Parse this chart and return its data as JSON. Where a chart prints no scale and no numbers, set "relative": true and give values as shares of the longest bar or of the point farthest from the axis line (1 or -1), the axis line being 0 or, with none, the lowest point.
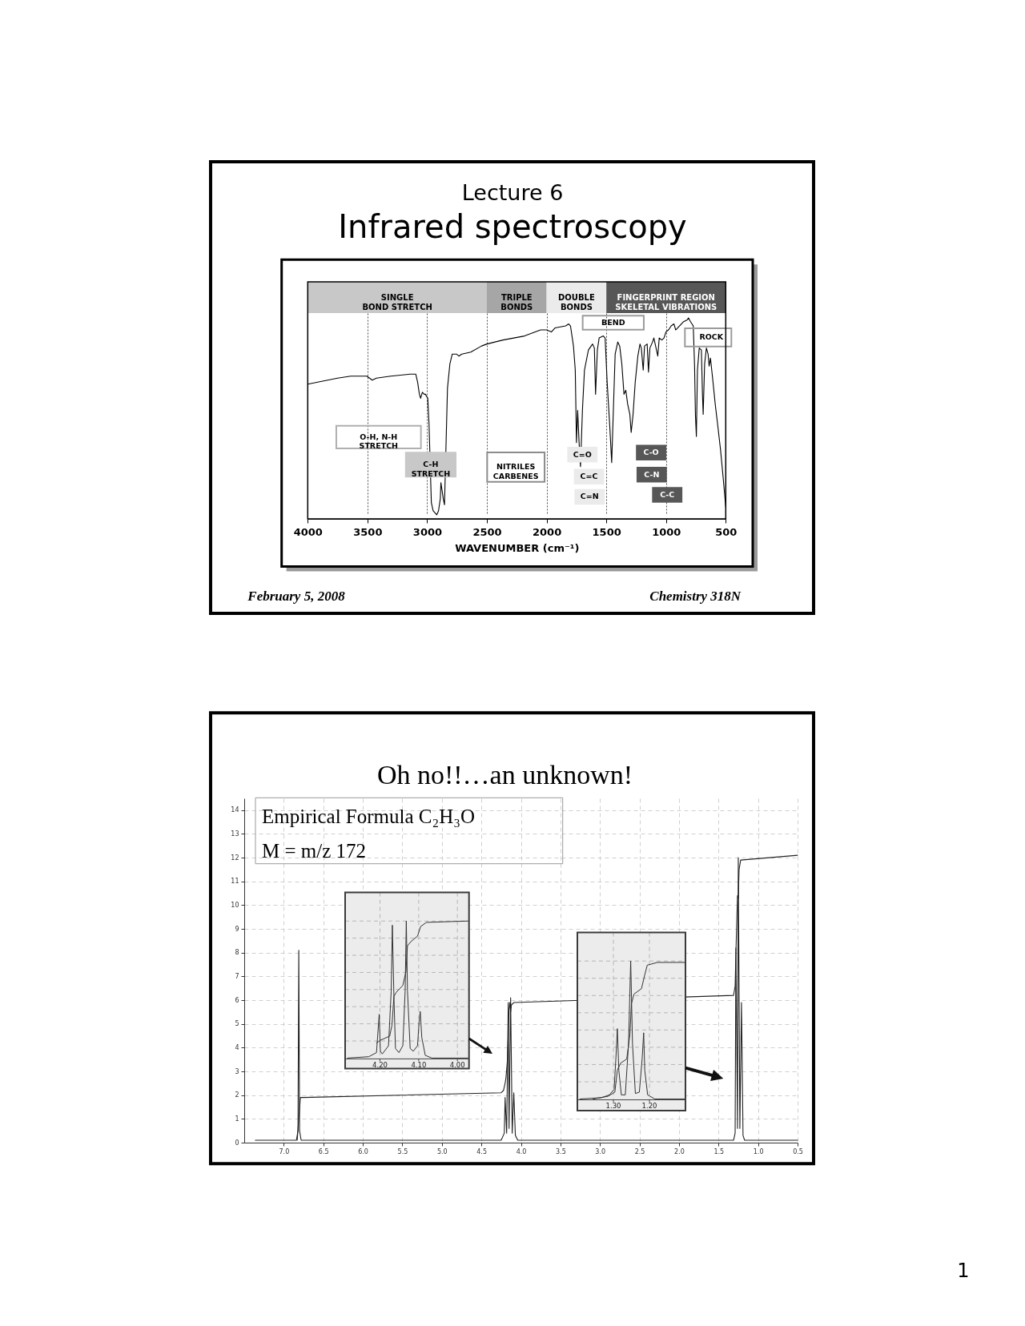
{
  "chart_data": [
    {
      "type": "line",
      "title": "Lecture 6",
      "subtitle": "Infrared spectroscopy",
      "xlabel": "WAVENUMBER (cm⁻¹)",
      "relative": true,
      "color": "#000000",
      "x": [
        4000,
        3750,
        3640,
        3505,
        3460,
        3425,
        3305,
        3145,
        3095,
        3080,
        3065,
        3055,
        3040,
        3025,
        3015,
        2995,
        2985,
        2965,
        2950,
        2935,
        2920,
        2905,
        2890,
        2885,
        2875,
        2865,
        2855,
        2830,
        2810,
        2790,
        2755,
        2735,
        2710,
        2635,
        2545,
        2500,
        2365,
        2185,
        2050,
        2000,
        1960,
        1930,
        1840,
        1815,
        1800,
        1775,
        1760,
        1750,
        1740,
        1728,
        1716,
        1700,
        1683,
        1650,
        1615,
        1600,
        1590,
        1575,
        1560,
        1525,
        1510,
        1493,
        1471,
        1455,
        1441,
        1426,
        1404,
        1388,
        1370,
        1352,
        1337,
        1321,
        1303,
        1292,
        1276,
        1258,
        1236,
        1218,
        1207,
        1191,
        1180,
        1158,
        1147,
        1135,
        1113,
        1102,
        1069,
        1057,
        1035,
        1017,
        1001,
        979,
        957,
        934,
        919,
        856,
        823,
        812,
        794,
        772,
        761,
        754,
        746,
        737,
        722,
        704,
        695,
        689,
        677,
        662,
        648,
        639,
        628,
        610,
        588,
        566,
        543,
        521,
        500
      ],
      "values": [
        0.67,
        0.7,
        0.71,
        0.71,
        0.69,
        0.7,
        0.71,
        0.72,
        0.72,
        0.68,
        0.62,
        0.6,
        0.63,
        0.62,
        0.62,
        0.6,
        0.48,
        0.08,
        0.04,
        0.03,
        0.02,
        0.04,
        0.1,
        0.18,
        0.14,
        0.1,
        0.07,
        0.65,
        0.77,
        0.82,
        0.82,
        0.81,
        0.82,
        0.83,
        0.86,
        0.87,
        0.89,
        0.91,
        0.94,
        0.94,
        0.93,
        0.95,
        0.96,
        0.97,
        0.96,
        0.86,
        0.74,
        0.38,
        0.54,
        0.38,
        0.26,
        0.54,
        0.74,
        0.84,
        0.87,
        0.85,
        0.62,
        0.84,
        0.9,
        0.91,
        0.9,
        0.68,
        0.46,
        0.28,
        0.54,
        0.82,
        0.88,
        0.86,
        0.77,
        0.62,
        0.64,
        0.57,
        0.52,
        0.43,
        0.52,
        0.68,
        0.81,
        0.87,
        0.85,
        0.74,
        0.86,
        0.87,
        0.73,
        0.85,
        0.88,
        0.9,
        0.81,
        0.9,
        0.89,
        0.9,
        0.93,
        0.94,
        0.96,
        0.97,
        0.94,
        0.98,
        0.99,
        1.0,
        0.98,
        0.96,
        0.76,
        0.52,
        0.41,
        0.74,
        0.85,
        0.84,
        0.62,
        0.52,
        0.77,
        0.85,
        0.82,
        0.76,
        0.8,
        0.7,
        0.57,
        0.46,
        0.34,
        0.2,
        0.06
      ],
      "xlim": [
        4000,
        500
      ],
      "xticks": [
        4000,
        3500,
        3000,
        2500,
        2000,
        1500,
        1000,
        500
      ],
      "grid": "x",
      "annotations": [
        {
          "text": "C-H\nSTRETCH",
          "x": 2970,
          "y": 0.27
        },
        {
          "text": "C=O",
          "x": 1700,
          "y": 0.32
        },
        {
          "text": "C=C",
          "x": 1645,
          "y": 0.21
        },
        {
          "text": "C=N",
          "x": 1640,
          "y": 0.11
        },
        {
          "text": "C-O",
          "x": 1125,
          "y": 0.33
        },
        {
          "text": "C-N",
          "x": 1120,
          "y": 0.22
        },
        {
          "text": "C-C",
          "x": 990,
          "y": 0.12
        },
        "SINGLE\nBOND STRETCH",
        "TRIPLE\nBONDS",
        "DOUBLE\nBONDS",
        "FINGERPRINT REGION\nSKELETAL VIBRATIONS",
        "O-H, N-H\nSTRETCH",
        "NITRILES\nCARBENES",
        "BEND",
        "ROCK",
        "February 5, 2008",
        "Chemistry 318N"
      ]
    },
    {
      "type": "line",
      "title": "Oh no!!…an unknown!",
      "xlim": [
        7.5,
        0.5
      ],
      "xticks": [
        {
          "value": 7,
          "label": "7.0"
        },
        6.5,
        {
          "value": 6,
          "label": "6.0"
        },
        5.5,
        {
          "value": 5,
          "label": "5.0"
        },
        4.5,
        {
          "value": 4,
          "label": "4.0"
        },
        3.5,
        {
          "value": 3,
          "label": "3.0"
        },
        2.5,
        {
          "value": 2,
          "label": "2.0"
        },
        1.5,
        {
          "value": 1,
          "label": "1.0"
        },
        0.5
      ],
      "ylim": [
        0,
        14.5
      ],
      "yticks": [
        0,
        1,
        2,
        3,
        4,
        5,
        6,
        7,
        8,
        9,
        10,
        11,
        12,
        13,
        14
      ],
      "grid": true,
      "series": [
        {
          "color": "#222222",
          "x": [
            7.36,
            6.84,
            6.82,
            6.81,
            6.8,
            6.78,
            4.25,
            4.21,
            4.2,
            4.18,
            4.16,
            4.15,
            4.13,
            4.11,
            4.09,
            4.07,
            4.04,
            1.31,
            1.29,
            1.28,
            1.26,
            1.25,
            1.23,
            1.21,
            1.19,
            1.17,
            0.5
          ],
          "values": [
            0.1,
            0.1,
            0.5,
            8.1,
            0.5,
            0.1,
            0.1,
            0.4,
            1.9,
            0.4,
            5.9,
            0.6,
            6.1,
            0.4,
            2.1,
            0.3,
            0.1,
            0.1,
            0.4,
            8.2,
            0.6,
            12.0,
            0.6,
            5.9,
            0.3,
            0.1,
            0.1
          ]
        },
        {
          "color": "#222222",
          "x": [
            6.83,
            6.81,
            6.79,
            6.75,
            4.25,
            4.22,
            4.2,
            4.19,
            4.17,
            4.15,
            4.14,
            4.13,
            4.12,
            4.09,
            1.31,
            1.29,
            1.28,
            1.26,
            1.25,
            1.24,
            1.22,
            0.5
          ],
          "values": [
            0.1,
            1.0,
            1.9,
            1.9,
            2.1,
            2.2,
            2.5,
            2.7,
            3.5,
            5.6,
            5.9,
            5.5,
            5.8,
            5.9,
            6.2,
            6.6,
            8.0,
            10.4,
            10.3,
            11.5,
            11.9,
            12.1
          ]
        }
      ],
      "annotations": [
        "Empirical Formula C₂H₃O",
        "M =  m/z 172"
      ]
    },
    {
      "type": "line",
      "relative": true,
      "xlim": [
        4.29,
        3.97
      ],
      "xticks": [
        {
          "value": 4.2,
          "label": "4.20"
        },
        {
          "value": 4.1,
          "label": "4.10"
        },
        {
          "value": 4.0,
          "label": "4.00"
        }
      ],
      "grid": true,
      "series": [
        {
          "color": "#333333",
          "x": [
            4.284,
            4.229,
            4.209,
            4.202,
            4.199,
            4.194,
            4.178,
            4.171,
            4.168,
            4.164,
            4.16,
            4.151,
            4.141,
            4.135,
            4.132,
            4.129,
            4.122,
            4.114,
            4.103,
            4.099,
            4.096,
            4.092,
            4.083,
            4.066,
            3.973
          ],
          "values": [
            0,
            0.01,
            0.04,
            0.32,
            0.05,
            0.03,
            0.09,
            0.49,
            0.97,
            0.45,
            0.07,
            0.04,
            0.09,
            0.49,
            1.0,
            0.49,
            0.07,
            0.05,
            0.09,
            0.26,
            0.34,
            0.15,
            0.02,
            0.0,
            0.0
          ]
        },
        {
          "color": "#333333",
          "x": [
            4.209,
            4.199,
            4.175,
            4.169,
            4.164,
            4.158,
            4.141,
            4.133,
            4.129,
            4.12,
            4.103,
            4.095,
            4.08,
            3.973
          ],
          "values": [
            0.11,
            0.13,
            0.16,
            0.24,
            0.45,
            0.48,
            0.53,
            0.63,
            0.82,
            0.85,
            0.89,
            0.96,
            0.99,
            1.0
          ]
        }
      ]
    },
    {
      "type": "line",
      "relative": true,
      "xlim": [
        1.4,
        1.1
      ],
      "xticks": [
        {
          "value": 1.3,
          "label": "1.30"
        },
        {
          "value": 1.2,
          "label": "1.20"
        }
      ],
      "grid": true,
      "series": [
        {
          "color": "#333333",
          "x": [
            1.393,
            1.333,
            1.311,
            1.298,
            1.293,
            1.289,
            1.285,
            1.278,
            1.267,
            1.258,
            1.252,
            1.247,
            1.239,
            1.228,
            1.22,
            1.216,
            1.213,
            1.205,
            1.185,
            1.1
          ],
          "values": [
            0,
            0.01,
            0.03,
            0.07,
            0.3,
            0.51,
            0.21,
            0.03,
            0.03,
            0.4,
            1.0,
            0.4,
            0.04,
            0.05,
            0.3,
            0.48,
            0.21,
            0.03,
            0.0,
            0.0
          ]
        },
        {
          "color": "#333333",
          "x": [
            1.356,
            1.315,
            1.296,
            1.289,
            1.28,
            1.263,
            1.254,
            1.25,
            1.243,
            1.222,
            1.213,
            1.206,
            1.178,
            1.1
          ],
          "values": [
            0.0,
            0.02,
            0.05,
            0.21,
            0.26,
            0.29,
            0.47,
            0.69,
            0.76,
            0.8,
            0.9,
            0.97,
            0.99,
            0.99
          ]
        }
      ]
    },
    {
      "type": "other",
      "annotations": [
        "1"
      ]
    }
  ]
}
